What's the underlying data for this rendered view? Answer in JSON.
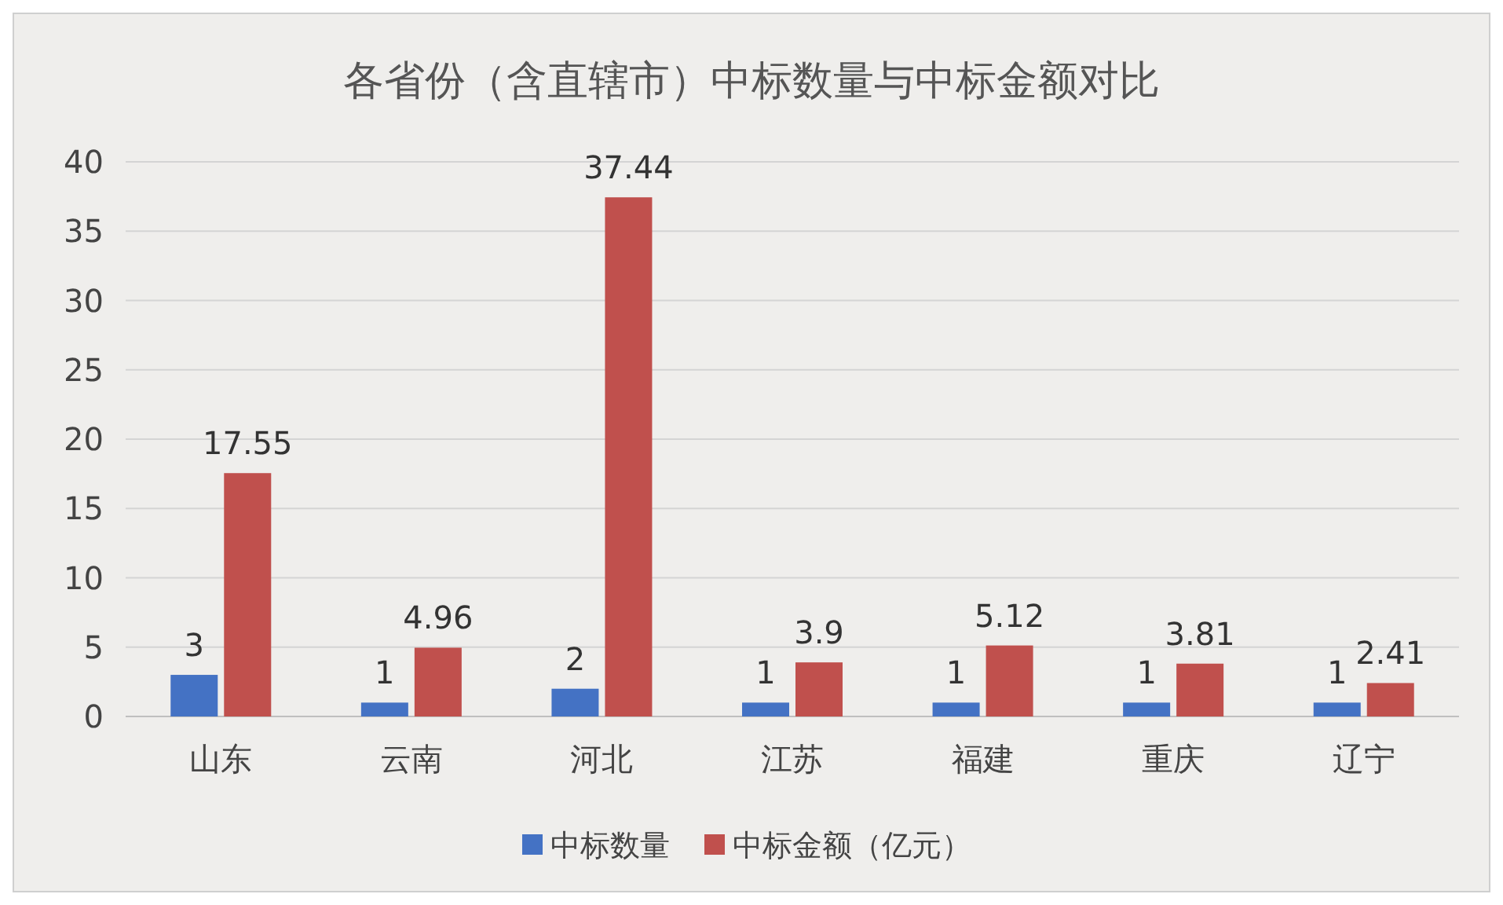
{
  "chart_data": {
    "type": "bar",
    "title": "各省份（含直辖市）中标数量与中标金额对比",
    "categories": [
      "山东",
      "云南",
      "河北",
      "江苏",
      "福建",
      "重庆",
      "辽宁"
    ],
    "series": [
      {
        "name": "中标数量",
        "color": "#4472c4",
        "values": [
          3,
          1,
          2,
          1,
          1,
          1,
          1
        ]
      },
      {
        "name": "中标金额（亿元）",
        "color": "#c0504d",
        "values": [
          17.55,
          4.96,
          37.44,
          3.9,
          5.12,
          3.81,
          2.41
        ]
      }
    ],
    "ylim": [
      0,
      40
    ],
    "yticks": [
      0,
      5,
      10,
      15,
      20,
      25,
      30,
      35,
      40
    ],
    "grid": "y",
    "legend": "bottom",
    "data_labels": true
  }
}
